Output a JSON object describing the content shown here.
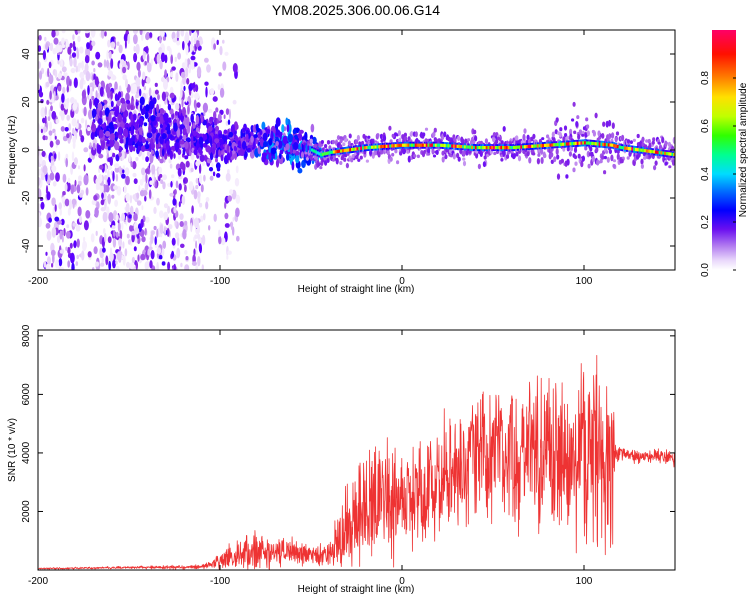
{
  "title": "YM08.2025.306.00.06.G14",
  "chart_data": [
    {
      "type": "heatmap",
      "name": "spectrogram",
      "xlabel": "Height of straight line (km)",
      "ylabel": "Frequency (Hz)",
      "xlim": [
        -200,
        150
      ],
      "ylim": [
        -50,
        50
      ],
      "xticks": [
        -200,
        -100,
        0,
        100
      ],
      "yticks": [
        -40,
        -20,
        0,
        20,
        40
      ],
      "colorbar": {
        "label": "Normalized spectral amplitude",
        "range": [
          0,
          1
        ],
        "ticks": [
          0.0,
          0.2,
          0.4,
          0.6,
          0.8
        ],
        "colors": [
          "#ffffff",
          "#d9b8f5",
          "#8a2be2",
          "#5a00ff",
          "#0000ff",
          "#0080ff",
          "#00e0ff",
          "#00ff80",
          "#80ff00",
          "#ffff00",
          "#ff8000",
          "#ff0000",
          "#ff0066"
        ]
      },
      "ridge": {
        "x": [
          -200,
          -160,
          -140,
          -120,
          -100,
          -80,
          -60,
          -50,
          -45,
          -40,
          -30,
          -20,
          0,
          20,
          40,
          60,
          80,
          100,
          115,
          120,
          130,
          140,
          150
        ],
        "y": [
          5,
          10,
          8,
          6,
          3,
          3,
          2,
          0,
          -2,
          -1,
          0,
          1,
          2,
          2,
          1,
          1,
          2,
          3,
          2,
          1,
          0,
          -1,
          -2
        ]
      },
      "noise_region_xmax": -95
    },
    {
      "type": "line",
      "name": "snr",
      "xlabel": "Height of straight line (km)",
      "ylabel": "SNR (10 * v/v)",
      "xlim": [
        -200,
        150
      ],
      "ylim": [
        0,
        8200
      ],
      "xticks": [
        -200,
        -100,
        0,
        100
      ],
      "yticks": [
        2000,
        4000,
        6000,
        8000
      ],
      "color": "#ee3333",
      "series": [
        {
          "name": "SNR",
          "x": [
            -200,
            -180,
            -160,
            -140,
            -120,
            -110,
            -100,
            -90,
            -80,
            -70,
            -60,
            -50,
            -40,
            -35,
            -30,
            -25,
            -20,
            -15,
            -10,
            -5,
            0,
            10,
            20,
            30,
            40,
            50,
            60,
            70,
            80,
            90,
            100,
            110,
            116,
            117,
            120,
            130,
            140,
            150
          ],
          "mean": [
            50,
            60,
            80,
            90,
            100,
            120,
            300,
            600,
            650,
            600,
            550,
            550,
            500,
            1000,
            1600,
            1800,
            2000,
            2100,
            2200,
            2300,
            2500,
            2800,
            3100,
            3400,
            3700,
            3900,
            4000,
            4000,
            3900,
            3900,
            3900,
            3900,
            3900,
            4000,
            4000,
            3900,
            3900,
            3800
          ],
          "spread": [
            30,
            40,
            50,
            60,
            80,
            100,
            300,
            700,
            900,
            800,
            700,
            500,
            500,
            1500,
            1900,
            2300,
            2400,
            2400,
            2400,
            2400,
            2200,
            2300,
            2500,
            2600,
            2700,
            2700,
            2900,
            3000,
            3200,
            3400,
            3600,
            3800,
            3800,
            400,
            300,
            300,
            300,
            300
          ]
        }
      ]
    }
  ]
}
